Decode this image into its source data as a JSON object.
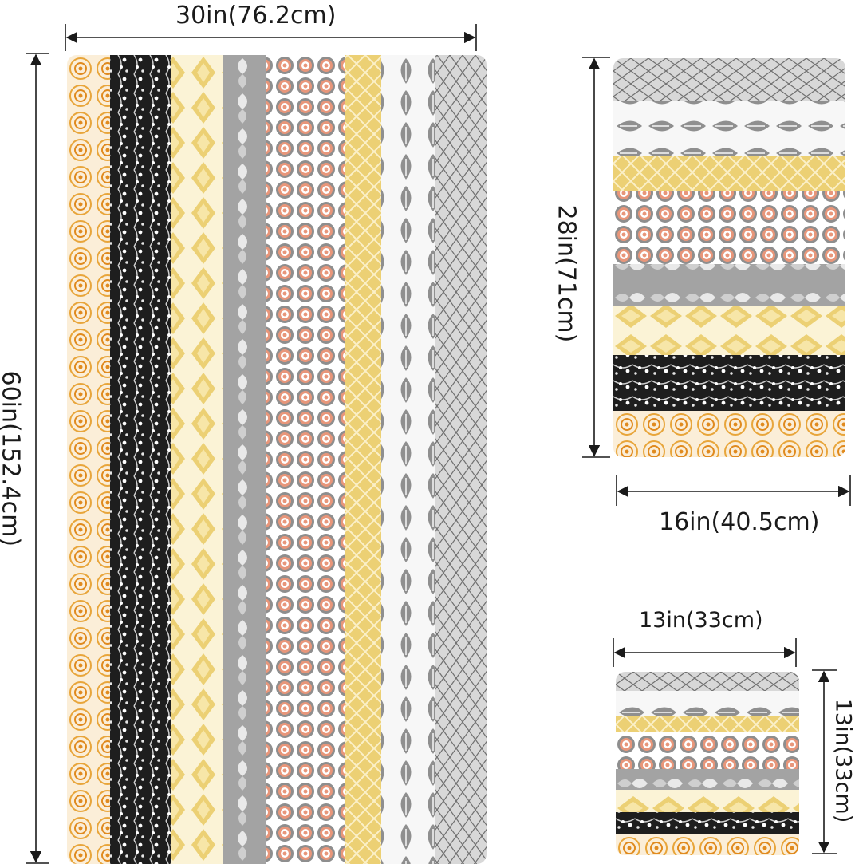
{
  "bath_towel": {
    "width_label": "30in(76.2cm)",
    "height_label": "60in(152.4cm)",
    "stripes": [
      "marigold-medallion",
      "black-floral-vine",
      "yellow-damask",
      "grey-damask",
      "coral-grey-rosette",
      "yellow-lattice",
      "grey-leaf",
      "grey-diamond-weave"
    ]
  },
  "hand_towel": {
    "width_label": "16in(40.5cm)",
    "height_label": "28in(71cm)",
    "stripes": [
      "grey-diamond-weave",
      "grey-leaf",
      "yellow-lattice",
      "coral-grey-rosette",
      "grey-damask",
      "yellow-damask",
      "black-floral-vine",
      "marigold-medallion"
    ]
  },
  "washcloth": {
    "width_label": "13in(33cm)",
    "height_label": "13in(33cm)",
    "stripes": [
      "grey-diamond-weave",
      "grey-leaf",
      "yellow-lattice",
      "coral-grey-rosette",
      "grey-damask",
      "yellow-damask",
      "black-floral-vine",
      "marigold-medallion"
    ]
  },
  "colors": {
    "marigold": "#e8a53a",
    "black": "#1e1e1e",
    "yellow": "#ecd074",
    "grey": "#9a9a9a",
    "coral": "#e8967a",
    "white": "#f7f5f1"
  }
}
